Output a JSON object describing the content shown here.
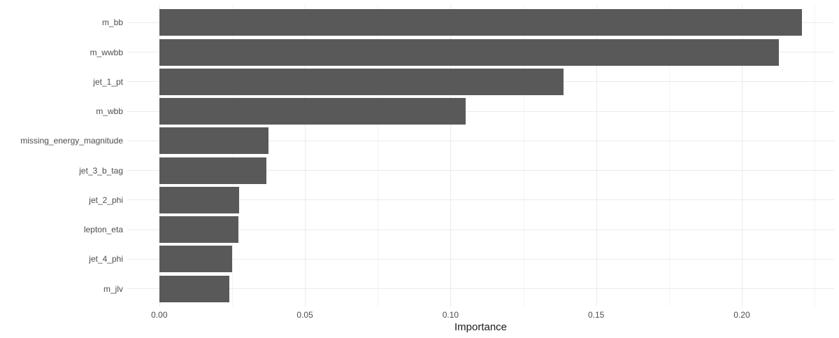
{
  "chart_data": {
    "type": "bar",
    "orientation": "horizontal",
    "title": "",
    "xlabel": "Importance",
    "ylabel": "",
    "categories": [
      "m_bb",
      "m_wwbb",
      "jet_1_pt",
      "m_wbb",
      "missing_energy_magnitude",
      "jet_3_b_tag",
      "jet_2_phi",
      "lepton_eta",
      "jet_4_phi",
      "m_jlv"
    ],
    "values": [
      0.2207,
      0.2128,
      0.1389,
      0.1053,
      0.0375,
      0.0367,
      0.0275,
      0.0271,
      0.025,
      0.0241
    ],
    "x_ticks": [
      {
        "value": 0.0,
        "label": "0.00"
      },
      {
        "value": 0.05,
        "label": "0.05"
      },
      {
        "value": 0.1,
        "label": "0.10"
      },
      {
        "value": 0.15,
        "label": "0.15"
      },
      {
        "value": 0.2,
        "label": "0.20"
      }
    ],
    "x_minor_ticks": [
      0.025,
      0.075,
      0.125,
      0.175,
      0.225
    ],
    "xlim": [
      -0.011,
      0.2317
    ],
    "grid": true,
    "legend": false,
    "bar_width_fraction": 0.9,
    "colors": {
      "bar": "#595959",
      "grid_major": "#ebebeb",
      "grid_minor": "#f3f3f3",
      "axis_text": "#4d4d4d",
      "axis_title": "#1a1a1a",
      "background": "#ffffff"
    }
  }
}
